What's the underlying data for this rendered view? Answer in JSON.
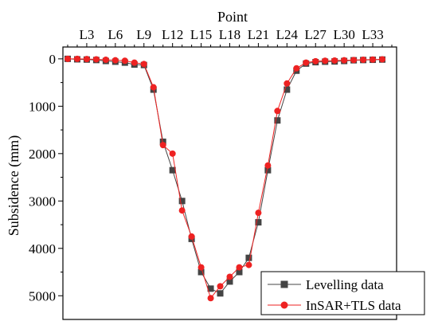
{
  "chart_data": {
    "type": "line",
    "x_title": "Point",
    "y_title": "Subsidence (mm)",
    "y_axis_inverted": true,
    "ylim": [
      -250,
      5500
    ],
    "y_ticks": [
      0,
      1000,
      2000,
      3000,
      4000,
      5000
    ],
    "x_tick_labels": [
      {
        "point": 3,
        "label": "L3"
      },
      {
        "point": 6,
        "label": "L6"
      },
      {
        "point": 9,
        "label": "L9"
      },
      {
        "point": 12,
        "label": "L12"
      },
      {
        "point": 15,
        "label": "L15"
      },
      {
        "point": 18,
        "label": "L18"
      },
      {
        "point": 21,
        "label": "L21"
      },
      {
        "point": 24,
        "label": "L24"
      },
      {
        "point": 27,
        "label": "L27"
      },
      {
        "point": 30,
        "label": "L30"
      },
      {
        "point": 33,
        "label": "L33"
      }
    ],
    "x_range": [
      0.5,
      35.5
    ],
    "legend_position": "bottom-right",
    "series": [
      {
        "name": "Levelling data",
        "color": "#444444",
        "marker": "square",
        "x": [
          1,
          2,
          3,
          4,
          5,
          6,
          7,
          8,
          9,
          10,
          11,
          12,
          13,
          14,
          15,
          16,
          17,
          18,
          19,
          20,
          21,
          22,
          23,
          24,
          25,
          26,
          27,
          28,
          29,
          30,
          31,
          32,
          33,
          34
        ],
        "values": [
          0,
          10,
          15,
          25,
          45,
          60,
          80,
          120,
          130,
          650,
          1750,
          2350,
          3000,
          3800,
          4500,
          4850,
          4950,
          4700,
          4500,
          4200,
          3450,
          2350,
          1300,
          650,
          250,
          100,
          70,
          60,
          55,
          45,
          30,
          25,
          20,
          15
        ]
      },
      {
        "name": "InSAR+TLS data",
        "color": "#ee2222",
        "marker": "circle",
        "x": [
          1,
          2,
          3,
          4,
          5,
          6,
          7,
          8,
          9,
          10,
          11,
          12,
          13,
          14,
          15,
          16,
          17,
          18,
          19,
          20,
          21,
          22,
          23,
          24,
          25,
          26,
          27,
          28,
          29,
          30,
          31,
          32,
          33,
          34
        ],
        "values": [
          0,
          0,
          5,
          10,
          20,
          30,
          40,
          80,
          110,
          600,
          1820,
          2000,
          3200,
          3750,
          4400,
          5050,
          4800,
          4600,
          4400,
          4350,
          3250,
          2250,
          1100,
          520,
          200,
          80,
          50,
          40,
          35,
          30,
          25,
          20,
          15,
          10
        ]
      }
    ]
  }
}
